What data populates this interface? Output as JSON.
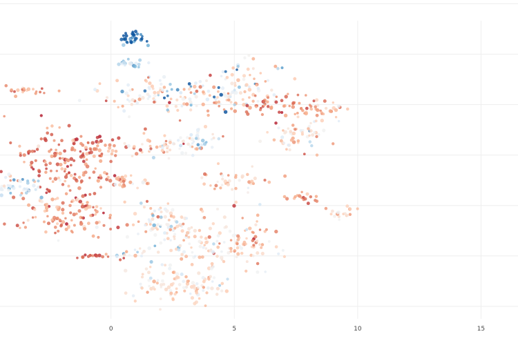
{
  "chart_data": {
    "type": "scatter",
    "title": "",
    "xlabel": "",
    "ylabel": "",
    "x_ticks": [
      0,
      5,
      10,
      15
    ],
    "x_tick_labels": [
      "0",
      "5",
      "10",
      "15"
    ],
    "y_grid_values": [
      12,
      10,
      8,
      6,
      4,
      2,
      0
    ],
    "xlim": [
      -4.5,
      16.5
    ],
    "ylim": [
      -0.3,
      11.6
    ],
    "grid": true,
    "legend": "none",
    "colorscale": [
      "#08519c",
      "#6baed6",
      "#deebf7",
      "#f2f2f2",
      "#fdd0b8",
      "#f4a582",
      "#d6604d",
      "#b2182b"
    ],
    "clusters": [
      {
        "x": 0.95,
        "y": 10.6,
        "sx": 0.25,
        "sy": 0.14,
        "n": 30,
        "c": 0.05,
        "cs": 0.08
      },
      {
        "x": 0.7,
        "y": 9.6,
        "sx": 0.35,
        "sy": 0.1,
        "n": 22,
        "c": 0.28,
        "cs": 0.1
      },
      {
        "x": 2.5,
        "y": 8.4,
        "sx": 1.6,
        "sy": 0.35,
        "n": 140,
        "c": 0.45,
        "cs": 0.2
      },
      {
        "x": 5.5,
        "y": 9.0,
        "sx": 0.7,
        "sy": 0.45,
        "n": 45,
        "c": 0.42,
        "cs": 0.18
      },
      {
        "x": 6.8,
        "y": 8.0,
        "sx": 1.2,
        "sy": 0.22,
        "n": 60,
        "c": 0.78,
        "cs": 0.1
      },
      {
        "x": 8.4,
        "y": 7.8,
        "sx": 0.45,
        "sy": 0.18,
        "n": 25,
        "c": 0.65,
        "cs": 0.1
      },
      {
        "x": 7.6,
        "y": 6.8,
        "sx": 0.7,
        "sy": 0.4,
        "n": 60,
        "c": 0.5,
        "cs": 0.18
      },
      {
        "x": -3.5,
        "y": 8.5,
        "sx": 0.45,
        "sy": 0.12,
        "n": 20,
        "c": 0.7,
        "cs": 0.12
      },
      {
        "x": -2.0,
        "y": 5.8,
        "sx": 1.0,
        "sy": 0.8,
        "n": 150,
        "c": 0.82,
        "cs": 0.1
      },
      {
        "x": -0.5,
        "y": 6.3,
        "sx": 0.5,
        "sy": 0.25,
        "n": 30,
        "c": 0.75,
        "cs": 0.1
      },
      {
        "x": 2.2,
        "y": 6.3,
        "sx": 1.0,
        "sy": 0.25,
        "n": 55,
        "c": 0.55,
        "cs": 0.18
      },
      {
        "x": 3.6,
        "y": 6.6,
        "sx": 0.45,
        "sy": 0.25,
        "n": 30,
        "c": 0.4,
        "cs": 0.15
      },
      {
        "x": -1.8,
        "y": 3.7,
        "sx": 1.0,
        "sy": 0.45,
        "n": 110,
        "c": 0.72,
        "cs": 0.14
      },
      {
        "x": -3.8,
        "y": 4.7,
        "sx": 0.8,
        "sy": 0.2,
        "n": 40,
        "c": 0.3,
        "cs": 0.12
      },
      {
        "x": 0.5,
        "y": 5.0,
        "sx": 0.6,
        "sy": 0.15,
        "n": 30,
        "c": 0.65,
        "cs": 0.12
      },
      {
        "x": 4.8,
        "y": 4.9,
        "sx": 0.8,
        "sy": 0.25,
        "n": 40,
        "c": 0.6,
        "cs": 0.15
      },
      {
        "x": 7.6,
        "y": 4.3,
        "sx": 0.5,
        "sy": 0.1,
        "n": 18,
        "c": 0.72,
        "cs": 0.1
      },
      {
        "x": 9.4,
        "y": 3.7,
        "sx": 0.35,
        "sy": 0.15,
        "n": 18,
        "c": 0.58,
        "cs": 0.12
      },
      {
        "x": 2.0,
        "y": 3.4,
        "sx": 0.6,
        "sy": 0.5,
        "n": 55,
        "c": 0.5,
        "cs": 0.18
      },
      {
        "x": 3.8,
        "y": 2.6,
        "sx": 1.2,
        "sy": 0.6,
        "n": 130,
        "c": 0.52,
        "cs": 0.15
      },
      {
        "x": 5.6,
        "y": 2.5,
        "sx": 0.6,
        "sy": 0.35,
        "n": 40,
        "c": 0.62,
        "cs": 0.12
      },
      {
        "x": 2.8,
        "y": 0.9,
        "sx": 1.0,
        "sy": 0.4,
        "n": 100,
        "c": 0.52,
        "cs": 0.12
      },
      {
        "x": -0.8,
        "y": 2.0,
        "sx": 0.5,
        "sy": 0.06,
        "n": 16,
        "c": 0.85,
        "cs": 0.08
      },
      {
        "x": 0.8,
        "y": 2.1,
        "sx": 0.5,
        "sy": 0.12,
        "n": 12,
        "c": 0.4,
        "cs": 0.15
      }
    ]
  }
}
